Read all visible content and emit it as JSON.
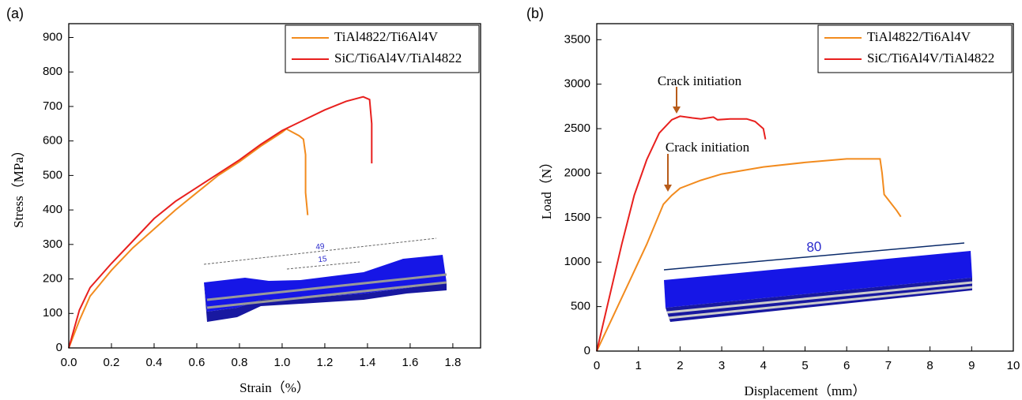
{
  "chart_data": [
    {
      "type": "line",
      "panel_label": "(a)",
      "x_label": "Strain（%）",
      "y_label": "Stress（MPa）",
      "xlim": [
        0,
        1.93
      ],
      "ylim": [
        0,
        940
      ],
      "xticks": [
        {
          "value": 0,
          "label": "0.0"
        },
        0.2,
        0.4,
        0.6,
        0.8,
        {
          "value": 1,
          "label": "1.0"
        },
        1.2,
        1.4,
        1.6,
        1.8
      ],
      "yticks": [
        0,
        100,
        200,
        300,
        400,
        500,
        600,
        700,
        800,
        900
      ],
      "legend": "upper right",
      "inset_labels": [
        "49",
        "15"
      ],
      "series": [
        {
          "name": "TiAl4822/Ti6Al4V",
          "color": "#f28b1e",
          "x": [
            0,
            0.05,
            0.1,
            0.2,
            0.3,
            0.4,
            0.5,
            0.6,
            0.7,
            0.8,
            0.9,
            1.0,
            1.02,
            1.05,
            1.08,
            1.1,
            1.11,
            1.11,
            1.12
          ],
          "values": [
            0,
            80,
            150,
            225,
            290,
            345,
            400,
            450,
            500,
            540,
            585,
            625,
            635,
            625,
            615,
            605,
            560,
            450,
            385
          ]
        },
        {
          "name": "SiC/Ti6Al4V/TiAl4822",
          "color": "#e8201e",
          "x": [
            0,
            0.05,
            0.1,
            0.2,
            0.3,
            0.4,
            0.5,
            0.6,
            0.7,
            0.8,
            0.9,
            1.0,
            1.1,
            1.2,
            1.3,
            1.38,
            1.41,
            1.42,
            1.42
          ],
          "values": [
            0,
            110,
            175,
            245,
            310,
            375,
            425,
            465,
            505,
            545,
            590,
            630,
            660,
            690,
            715,
            728,
            720,
            650,
            535
          ]
        }
      ]
    },
    {
      "type": "line",
      "panel_label": "(b)",
      "x_label": "Displacement（mm）",
      "y_label": "Load（N）",
      "xlim": [
        0,
        10
      ],
      "ylim": [
        0,
        3680
      ],
      "xticks": [
        0,
        1,
        2,
        3,
        4,
        5,
        6,
        7,
        8,
        9,
        10
      ],
      "yticks": [
        0,
        500,
        1000,
        1500,
        2000,
        2500,
        3000,
        3500
      ],
      "legend": "upper right",
      "annotations": [
        "Crack initiation",
        "Crack initiation"
      ],
      "inset_labels": [
        "80"
      ],
      "series": [
        {
          "name": "TiAl4822/Ti6Al4V",
          "color": "#f28b1e",
          "x": [
            0,
            0.4,
            0.8,
            1.2,
            1.6,
            1.8,
            2.0,
            2.5,
            3,
            4,
            5,
            6,
            6.8,
            6.85,
            6.9,
            7.0,
            7.2,
            7.3
          ],
          "values": [
            0,
            400,
            800,
            1200,
            1650,
            1750,
            1830,
            1920,
            1990,
            2070,
            2120,
            2160,
            2160,
            2000,
            1760,
            1700,
            1580,
            1510
          ]
        },
        {
          "name": "SiC/Ti6Al4V/TiAl4822",
          "color": "#e8201e",
          "x": [
            0,
            0.3,
            0.6,
            0.9,
            1.2,
            1.5,
            1.8,
            2.0,
            2.3,
            2.5,
            2.8,
            2.9,
            3.2,
            3.6,
            3.8,
            4.0,
            4.05
          ],
          "values": [
            0,
            600,
            1200,
            1750,
            2150,
            2450,
            2600,
            2640,
            2620,
            2610,
            2630,
            2600,
            2610,
            2610,
            2580,
            2500,
            2380
          ]
        }
      ]
    }
  ]
}
